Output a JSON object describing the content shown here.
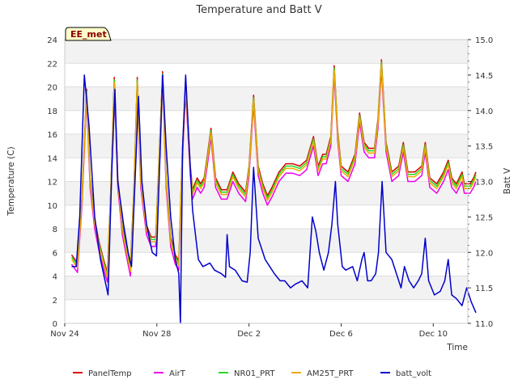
{
  "chart_data": {
    "type": "line",
    "title": "Temperature and Batt V",
    "xlabel": "Time",
    "ylabel_left": "Temperature (C)",
    "ylabel_right": "Batt V",
    "station_label": "EE_met",
    "x_range_days": [
      0,
      17.5
    ],
    "x_ticks": [
      {
        "day": 0,
        "label": "Nov 24"
      },
      {
        "day": 4,
        "label": "Nov 28"
      },
      {
        "day": 8,
        "label": "Dec 2"
      },
      {
        "day": 12,
        "label": "Dec 6"
      },
      {
        "day": 16,
        "label": "Dec 10"
      }
    ],
    "ylim_left": [
      0,
      24
    ],
    "yticks_left": [
      "0",
      "2",
      "4",
      "6",
      "8",
      "10",
      "12",
      "14",
      "16",
      "18",
      "20",
      "22",
      "24"
    ],
    "ylim_right": [
      11.0,
      15.0
    ],
    "yticks_right": [
      "11.0",
      "11.5",
      "12.0",
      "12.5",
      "13.0",
      "13.5",
      "14.0",
      "14.5",
      "15.0"
    ],
    "grid": "horizontal bands",
    "legend_position": "bottom",
    "series": [
      {
        "name": "PanelTemp",
        "color": "#dd0000",
        "axis": "left",
        "offset": 0.3
      },
      {
        "name": "AirT",
        "color": "#ee00ee",
        "axis": "left",
        "offset": -0.5
      },
      {
        "name": "NR01_PRT",
        "color": "#22dd22",
        "axis": "left",
        "offset": 0.1
      },
      {
        "name": "AM25T_PRT",
        "color": "#eeaa00",
        "axis": "left",
        "offset": -0.1
      },
      {
        "name": "batt_volt",
        "color": "#0000cc",
        "axis": "right"
      }
    ],
    "temperature_points": [
      [
        0.3,
        5.5
      ],
      [
        0.55,
        4.8
      ],
      [
        0.75,
        10.5
      ],
      [
        0.95,
        19.5
      ],
      [
        1.1,
        12.0
      ],
      [
        1.3,
        8.5
      ],
      [
        1.5,
        6.5
      ],
      [
        1.7,
        5.0
      ],
      [
        1.85,
        4.0
      ],
      [
        2.0,
        11.0
      ],
      [
        2.15,
        20.5
      ],
      [
        2.3,
        12.0
      ],
      [
        2.5,
        8.0
      ],
      [
        2.7,
        6.0
      ],
      [
        2.85,
        4.5
      ],
      [
        3.0,
        11.0
      ],
      [
        3.15,
        20.5
      ],
      [
        3.3,
        12.0
      ],
      [
        3.55,
        8.0
      ],
      [
        3.75,
        7.0
      ],
      [
        3.95,
        7.0
      ],
      [
        4.1,
        14.0
      ],
      [
        4.25,
        21.0
      ],
      [
        4.4,
        12.0
      ],
      [
        4.6,
        7.0
      ],
      [
        4.8,
        5.5
      ],
      [
        4.95,
        5.0
      ],
      [
        5.1,
        14.0
      ],
      [
        5.25,
        20.0
      ],
      [
        5.45,
        13.0
      ],
      [
        5.55,
        11.0
      ],
      [
        5.75,
        12.0
      ],
      [
        5.9,
        11.5
      ],
      [
        6.05,
        12.0
      ],
      [
        6.2,
        14.0
      ],
      [
        6.35,
        16.2
      ],
      [
        6.55,
        12.0
      ],
      [
        6.8,
        11.0
      ],
      [
        7.05,
        11.0
      ],
      [
        7.3,
        12.5
      ],
      [
        7.55,
        11.5
      ],
      [
        7.85,
        10.8
      ],
      [
        8.0,
        13.0
      ],
      [
        8.2,
        19.0
      ],
      [
        8.4,
        13.0
      ],
      [
        8.6,
        11.5
      ],
      [
        8.8,
        10.5
      ],
      [
        9.0,
        11.2
      ],
      [
        9.3,
        12.5
      ],
      [
        9.6,
        13.2
      ],
      [
        9.9,
        13.2
      ],
      [
        10.2,
        13.0
      ],
      [
        10.5,
        13.5
      ],
      [
        10.8,
        15.5
      ],
      [
        11.0,
        13.0
      ],
      [
        11.2,
        14.0
      ],
      [
        11.35,
        14.0
      ],
      [
        11.55,
        15.5
      ],
      [
        11.7,
        21.5
      ],
      [
        11.85,
        16.0
      ],
      [
        12.0,
        13.0
      ],
      [
        12.3,
        12.5
      ],
      [
        12.6,
        14.0
      ],
      [
        12.8,
        17.5
      ],
      [
        13.0,
        15.0
      ],
      [
        13.2,
        14.5
      ],
      [
        13.45,
        14.5
      ],
      [
        13.6,
        17.0
      ],
      [
        13.75,
        22.0
      ],
      [
        13.95,
        15.0
      ],
      [
        14.2,
        12.5
      ],
      [
        14.5,
        13.0
      ],
      [
        14.7,
        15.0
      ],
      [
        14.9,
        12.5
      ],
      [
        15.2,
        12.5
      ],
      [
        15.5,
        13.0
      ],
      [
        15.65,
        15.0
      ],
      [
        15.85,
        12.0
      ],
      [
        16.15,
        11.5
      ],
      [
        16.45,
        12.5
      ],
      [
        16.65,
        13.5
      ],
      [
        16.8,
        12.0
      ],
      [
        17.0,
        11.5
      ],
      [
        17.25,
        12.5
      ],
      [
        17.35,
        11.5
      ],
      [
        17.6,
        11.5
      ],
      [
        17.75,
        12.0
      ],
      [
        17.85,
        12.5
      ]
    ],
    "battery_points": [
      [
        0.3,
        11.8
      ],
      [
        0.5,
        11.8
      ],
      [
        0.65,
        12.5
      ],
      [
        0.85,
        14.5
      ],
      [
        1.05,
        13.8
      ],
      [
        1.3,
        12.5
      ],
      [
        1.55,
        11.9
      ],
      [
        1.75,
        11.6
      ],
      [
        1.88,
        11.4
      ],
      [
        2.05,
        13.2
      ],
      [
        2.18,
        14.3
      ],
      [
        2.3,
        13.0
      ],
      [
        2.55,
        12.4
      ],
      [
        2.75,
        12.0
      ],
      [
        2.9,
        11.8
      ],
      [
        3.05,
        13.0
      ],
      [
        3.2,
        14.2
      ],
      [
        3.35,
        13.0
      ],
      [
        3.55,
        12.4
      ],
      [
        3.8,
        12.0
      ],
      [
        3.98,
        11.95
      ],
      [
        4.15,
        13.5
      ],
      [
        4.25,
        14.5
      ],
      [
        4.4,
        13.5
      ],
      [
        4.6,
        12.5
      ],
      [
        4.8,
        11.9
      ],
      [
        4.95,
        11.7
      ],
      [
        5.02,
        11.0
      ],
      [
        5.12,
        13.5
      ],
      [
        5.25,
        14.5
      ],
      [
        5.4,
        13.5
      ],
      [
        5.55,
        12.6
      ],
      [
        5.8,
        11.9
      ],
      [
        6.0,
        11.8
      ],
      [
        6.3,
        11.85
      ],
      [
        6.5,
        11.75
      ],
      [
        6.8,
        11.7
      ],
      [
        6.98,
        11.65
      ],
      [
        7.05,
        12.25
      ],
      [
        7.15,
        11.8
      ],
      [
        7.4,
        11.75
      ],
      [
        7.7,
        11.6
      ],
      [
        7.92,
        11.58
      ],
      [
        8.05,
        12.0
      ],
      [
        8.2,
        13.2
      ],
      [
        8.4,
        12.2
      ],
      [
        8.7,
        11.9
      ],
      [
        8.9,
        11.8
      ],
      [
        9.1,
        11.7
      ],
      [
        9.35,
        11.6
      ],
      [
        9.55,
        11.6
      ],
      [
        9.8,
        11.5
      ],
      [
        10.0,
        11.55
      ],
      [
        10.3,
        11.6
      ],
      [
        10.55,
        11.5
      ],
      [
        10.75,
        12.5
      ],
      [
        10.9,
        12.3
      ],
      [
        11.05,
        12.0
      ],
      [
        11.25,
        11.75
      ],
      [
        11.45,
        12.0
      ],
      [
        11.6,
        12.4
      ],
      [
        11.75,
        13.0
      ],
      [
        11.85,
        12.4
      ],
      [
        12.05,
        11.8
      ],
      [
        12.2,
        11.75
      ],
      [
        12.5,
        11.8
      ],
      [
        12.7,
        11.6
      ],
      [
        12.9,
        11.9
      ],
      [
        13.0,
        12.0
      ],
      [
        13.15,
        11.6
      ],
      [
        13.3,
        11.6
      ],
      [
        13.5,
        11.7
      ],
      [
        13.62,
        12.0
      ],
      [
        13.78,
        13.0
      ],
      [
        13.95,
        12.0
      ],
      [
        14.2,
        11.9
      ],
      [
        14.4,
        11.7
      ],
      [
        14.6,
        11.5
      ],
      [
        14.75,
        11.8
      ],
      [
        14.95,
        11.6
      ],
      [
        15.15,
        11.5
      ],
      [
        15.35,
        11.6
      ],
      [
        15.5,
        11.7
      ],
      [
        15.65,
        12.2
      ],
      [
        15.8,
        11.6
      ],
      [
        16.05,
        11.4
      ],
      [
        16.3,
        11.45
      ],
      [
        16.5,
        11.6
      ],
      [
        16.65,
        11.9
      ],
      [
        16.8,
        11.4
      ],
      [
        17.0,
        11.35
      ],
      [
        17.25,
        11.25
      ],
      [
        17.45,
        11.5
      ],
      [
        17.65,
        11.3
      ],
      [
        17.85,
        11.15
      ]
    ]
  }
}
